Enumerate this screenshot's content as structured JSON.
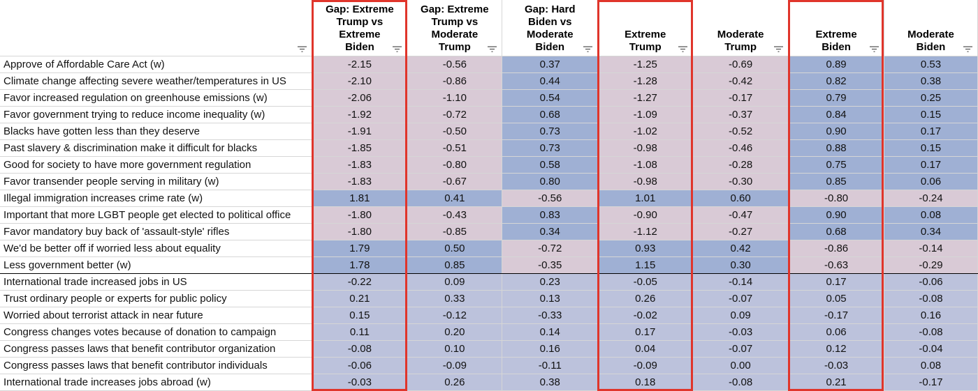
{
  "columns": [
    {
      "key": "gap_et_eb",
      "label": "Gap: Extreme\nTrump vs\nExtreme\nBiden"
    },
    {
      "key": "gap_et_mt",
      "label": "Gap: Extreme\nTrump vs\nModerate\nTrump"
    },
    {
      "key": "gap_hb_mb",
      "label": "Gap: Hard\nBiden vs\nModerate\nBiden"
    },
    {
      "key": "extreme_trump",
      "label": "Extreme\nTrump"
    },
    {
      "key": "moderate_trump",
      "label": "Moderate\nTrump"
    },
    {
      "key": "extreme_biden",
      "label": "Extreme\nBiden"
    },
    {
      "key": "moderate_biden",
      "label": "Moderate\nBiden"
    }
  ],
  "colors": {
    "negative_tint": "#d9cad6",
    "positive_tint": "#9fb0d4",
    "neutral_tint": "#bcc2dc",
    "highlight_border": "#e0352b"
  },
  "rows": [
    {
      "label": "Approve of Affordable Care Act (w)",
      "values": [
        "-2.15",
        "-0.56",
        "0.37",
        "-1.25",
        "-0.69",
        "0.89",
        "0.53"
      ]
    },
    {
      "label": "Climate change affecting severe weather/temperatures in US",
      "values": [
        "-2.10",
        "-0.86",
        "0.44",
        "-1.28",
        "-0.42",
        "0.82",
        "0.38"
      ]
    },
    {
      "label": "Favor increased regulation on greenhouse emissions (w)",
      "values": [
        "-2.06",
        "-1.10",
        "0.54",
        "-1.27",
        "-0.17",
        "0.79",
        "0.25"
      ]
    },
    {
      "label": "Favor government trying to reduce income inequality (w)",
      "values": [
        "-1.92",
        "-0.72",
        "0.68",
        "-1.09",
        "-0.37",
        "0.84",
        "0.15"
      ]
    },
    {
      "label": "Blacks have gotten less than they deserve",
      "values": [
        "-1.91",
        "-0.50",
        "0.73",
        "-1.02",
        "-0.52",
        "0.90",
        "0.17"
      ]
    },
    {
      "label": "Past slavery & discrimination make it difficult for blacks",
      "values": [
        "-1.85",
        "-0.51",
        "0.73",
        "-0.98",
        "-0.46",
        "0.88",
        "0.15"
      ]
    },
    {
      "label": "Good for society to have more government regulation",
      "values": [
        "-1.83",
        "-0.80",
        "0.58",
        "-1.08",
        "-0.28",
        "0.75",
        "0.17"
      ]
    },
    {
      "label": "Favor transender people serving in military (w)",
      "values": [
        "-1.83",
        "-0.67",
        "0.80",
        "-0.98",
        "-0.30",
        "0.85",
        "0.06"
      ]
    },
    {
      "label": "Illegal immigration increases crime rate (w)",
      "values": [
        "1.81",
        "0.41",
        "-0.56",
        "1.01",
        "0.60",
        "-0.80",
        "-0.24"
      ]
    },
    {
      "label": "Important that more LGBT people get elected to political office",
      "values": [
        "-1.80",
        "-0.43",
        "0.83",
        "-0.90",
        "-0.47",
        "0.90",
        "0.08"
      ]
    },
    {
      "label": "Favor mandatory buy back of 'assault-style' rifles",
      "values": [
        "-1.80",
        "-0.85",
        "0.34",
        "-1.12",
        "-0.27",
        "0.68",
        "0.34"
      ]
    },
    {
      "label": "We'd be better off if worried less about equality",
      "values": [
        "1.79",
        "0.50",
        "-0.72",
        "0.93",
        "0.42",
        "-0.86",
        "-0.14"
      ]
    },
    {
      "label": "Less government better (w)",
      "values": [
        "1.78",
        "0.85",
        "-0.35",
        "1.15",
        "0.30",
        "-0.63",
        "-0.29"
      ]
    },
    {
      "label": "International trade increased jobs in US",
      "values": [
        "-0.22",
        "0.09",
        "0.23",
        "-0.05",
        "-0.14",
        "0.17",
        "-0.06"
      ]
    },
    {
      "label": "Trust ordinary people or experts for public policy",
      "values": [
        "0.21",
        "0.33",
        "0.13",
        "0.26",
        "-0.07",
        "0.05",
        "-0.08"
      ]
    },
    {
      "label": "Worried about terrorist attack in near future",
      "values": [
        "0.15",
        "-0.12",
        "-0.33",
        "-0.02",
        "0.09",
        "-0.17",
        "0.16"
      ]
    },
    {
      "label": "Congress changes votes because of donation to campaign",
      "values": [
        "0.11",
        "0.20",
        "0.14",
        "0.17",
        "-0.03",
        "0.06",
        "-0.08"
      ]
    },
    {
      "label": "Congress passes laws that benefit contributor organization",
      "values": [
        "-0.08",
        "0.10",
        "0.16",
        "0.04",
        "-0.07",
        "0.12",
        "-0.04"
      ]
    },
    {
      "label": "Congress passes laws that benefit contributor individuals",
      "values": [
        "-0.06",
        "-0.09",
        "-0.11",
        "-0.09",
        "0.00",
        "-0.03",
        "0.08"
      ]
    },
    {
      "label": "International trade increases jobs abroad (w)",
      "values": [
        "-0.03",
        "0.26",
        "0.38",
        "0.18",
        "-0.08",
        "0.21",
        "-0.17"
      ]
    }
  ]
}
